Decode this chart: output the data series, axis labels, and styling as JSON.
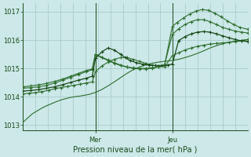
{
  "xlabel": "Pression niveau de la mer( hPa )",
  "bg_color": "#cce8e8",
  "grid_color": "#aacccc",
  "line_color": "#2d6e2d",
  "dark_line_color": "#1a4a1a",
  "ylim": [
    1012.8,
    1017.3
  ],
  "yticks": [
    1013,
    1014,
    1015,
    1016,
    1017
  ],
  "xlim": [
    0,
    143
  ],
  "mer_x": 46,
  "jeu_x": 95,
  "n_vgrid": 18,
  "series1_x": [
    0,
    3,
    6,
    9,
    12,
    15,
    18,
    21,
    24,
    27,
    30,
    33,
    36,
    39,
    42,
    46,
    50,
    54,
    58,
    62,
    66,
    70,
    74,
    78,
    82,
    86,
    90,
    95,
    99,
    103,
    107,
    111,
    115,
    119,
    123,
    127,
    131,
    135,
    139,
    143
  ],
  "series1_y": [
    1013.1,
    1013.25,
    1013.4,
    1013.5,
    1013.6,
    1013.68,
    1013.75,
    1013.82,
    1013.88,
    1013.93,
    1013.97,
    1014.0,
    1014.02,
    1014.05,
    1014.08,
    1014.15,
    1014.25,
    1014.38,
    1014.52,
    1014.67,
    1014.82,
    1014.95,
    1015.05,
    1015.12,
    1015.18,
    1015.22,
    1015.25,
    1015.28,
    1015.32,
    1015.38,
    1015.45,
    1015.53,
    1015.62,
    1015.72,
    1015.8,
    1015.87,
    1015.92,
    1015.96,
    1015.99,
    1016.02
  ],
  "series2_x": [
    0,
    4,
    8,
    12,
    16,
    20,
    24,
    28,
    32,
    36,
    40,
    44,
    46,
    50,
    54,
    58,
    62,
    66,
    70,
    74,
    78,
    82,
    86,
    90,
    95,
    99,
    103,
    107,
    111,
    115,
    119,
    123,
    127,
    131,
    135,
    139,
    143
  ],
  "series2_y": [
    1014.1,
    1014.12,
    1014.14,
    1014.18,
    1014.22,
    1014.28,
    1014.32,
    1014.36,
    1014.4,
    1014.44,
    1014.48,
    1014.52,
    1014.88,
    1015.08,
    1015.22,
    1015.32,
    1015.38,
    1015.38,
    1015.32,
    1015.25,
    1015.18,
    1015.12,
    1015.08,
    1015.05,
    1015.45,
    1015.55,
    1015.65,
    1015.72,
    1015.78,
    1015.82,
    1015.86,
    1015.88,
    1015.9,
    1015.92,
    1015.94,
    1015.97,
    1016.02
  ],
  "series3_x": [
    0,
    5,
    10,
    15,
    20,
    25,
    30,
    35,
    40,
    44,
    46,
    50,
    54,
    58,
    62,
    65,
    68,
    72,
    76,
    80,
    84,
    88,
    92,
    95,
    99,
    103,
    107,
    111,
    115,
    119,
    123,
    127,
    131,
    135,
    139,
    143
  ],
  "series3_y": [
    1014.2,
    1014.22,
    1014.25,
    1014.3,
    1014.35,
    1014.42,
    1014.5,
    1014.58,
    1014.65,
    1014.72,
    1015.35,
    1015.58,
    1015.72,
    1015.65,
    1015.5,
    1015.38,
    1015.28,
    1015.2,
    1015.15,
    1015.12,
    1015.1,
    1015.1,
    1015.12,
    1015.15,
    1015.98,
    1016.12,
    1016.22,
    1016.28,
    1016.3,
    1016.28,
    1016.22,
    1016.15,
    1016.08,
    1016.02,
    1015.97,
    1015.95
  ],
  "series4_x": [
    0,
    5,
    10,
    15,
    20,
    25,
    30,
    35,
    40,
    44,
    46,
    50,
    54,
    58,
    62,
    66,
    70,
    74,
    78,
    82,
    86,
    90,
    95,
    98,
    102,
    106,
    110,
    114,
    118,
    122,
    126,
    130,
    134,
    138,
    143
  ],
  "series4_y": [
    1014.3,
    1014.32,
    1014.35,
    1014.4,
    1014.48,
    1014.58,
    1014.68,
    1014.78,
    1014.88,
    1014.95,
    1015.48,
    1015.38,
    1015.28,
    1015.18,
    1015.1,
    1015.05,
    1015.02,
    1015.0,
    1015.0,
    1015.02,
    1015.05,
    1015.1,
    1016.48,
    1016.62,
    1016.78,
    1016.92,
    1017.02,
    1017.08,
    1017.05,
    1016.95,
    1016.82,
    1016.68,
    1016.55,
    1016.45,
    1016.38
  ],
  "series5_x": [
    0,
    5,
    10,
    15,
    20,
    25,
    30,
    35,
    40,
    44,
    46,
    50,
    54,
    58,
    62,
    66,
    70,
    74,
    78,
    82,
    86,
    90,
    95,
    99,
    103,
    107,
    111,
    115,
    119,
    123,
    127,
    131,
    135,
    139,
    143
  ],
  "series5_y": [
    1014.35,
    1014.38,
    1014.42,
    1014.47,
    1014.54,
    1014.62,
    1014.72,
    1014.82,
    1014.92,
    1014.98,
    1015.5,
    1015.4,
    1015.3,
    1015.2,
    1015.12,
    1015.05,
    1015.0,
    1014.98,
    1014.98,
    1015.0,
    1015.05,
    1015.12,
    1016.2,
    1016.4,
    1016.55,
    1016.65,
    1016.72,
    1016.72,
    1016.65,
    1016.55,
    1016.45,
    1016.38,
    1016.32,
    1016.28,
    1016.25
  ]
}
